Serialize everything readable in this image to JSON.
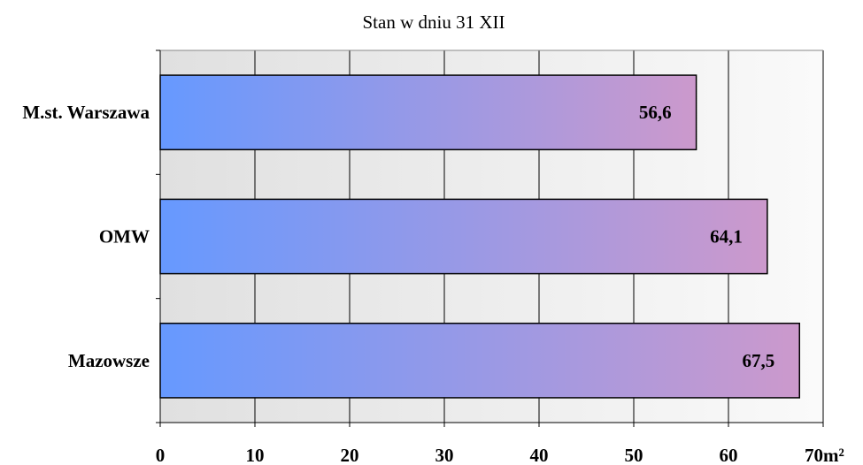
{
  "chart_data": {
    "type": "bar",
    "orientation": "horizontal",
    "title": "Stan w dniu 31 XII",
    "categories": [
      "M.st. Warszawa",
      "OMW",
      "Mazowsze"
    ],
    "values": [
      56.6,
      64.1,
      67.5
    ],
    "value_labels": [
      "56,6",
      "64,1",
      "67,5"
    ],
    "xlim": [
      0,
      70
    ],
    "x_ticks": [
      "0",
      "10",
      "20",
      "30",
      "40",
      "50",
      "60",
      "70"
    ],
    "unit_label": "m²",
    "xlabel": "",
    "ylabel": "",
    "grid": true,
    "legend": "none",
    "colors": {
      "bar_start": "#6699ff",
      "bar_end": "#cc99cc",
      "plot_bg_start": "#e0e0e0",
      "plot_bg_end": "#fafafa"
    }
  }
}
